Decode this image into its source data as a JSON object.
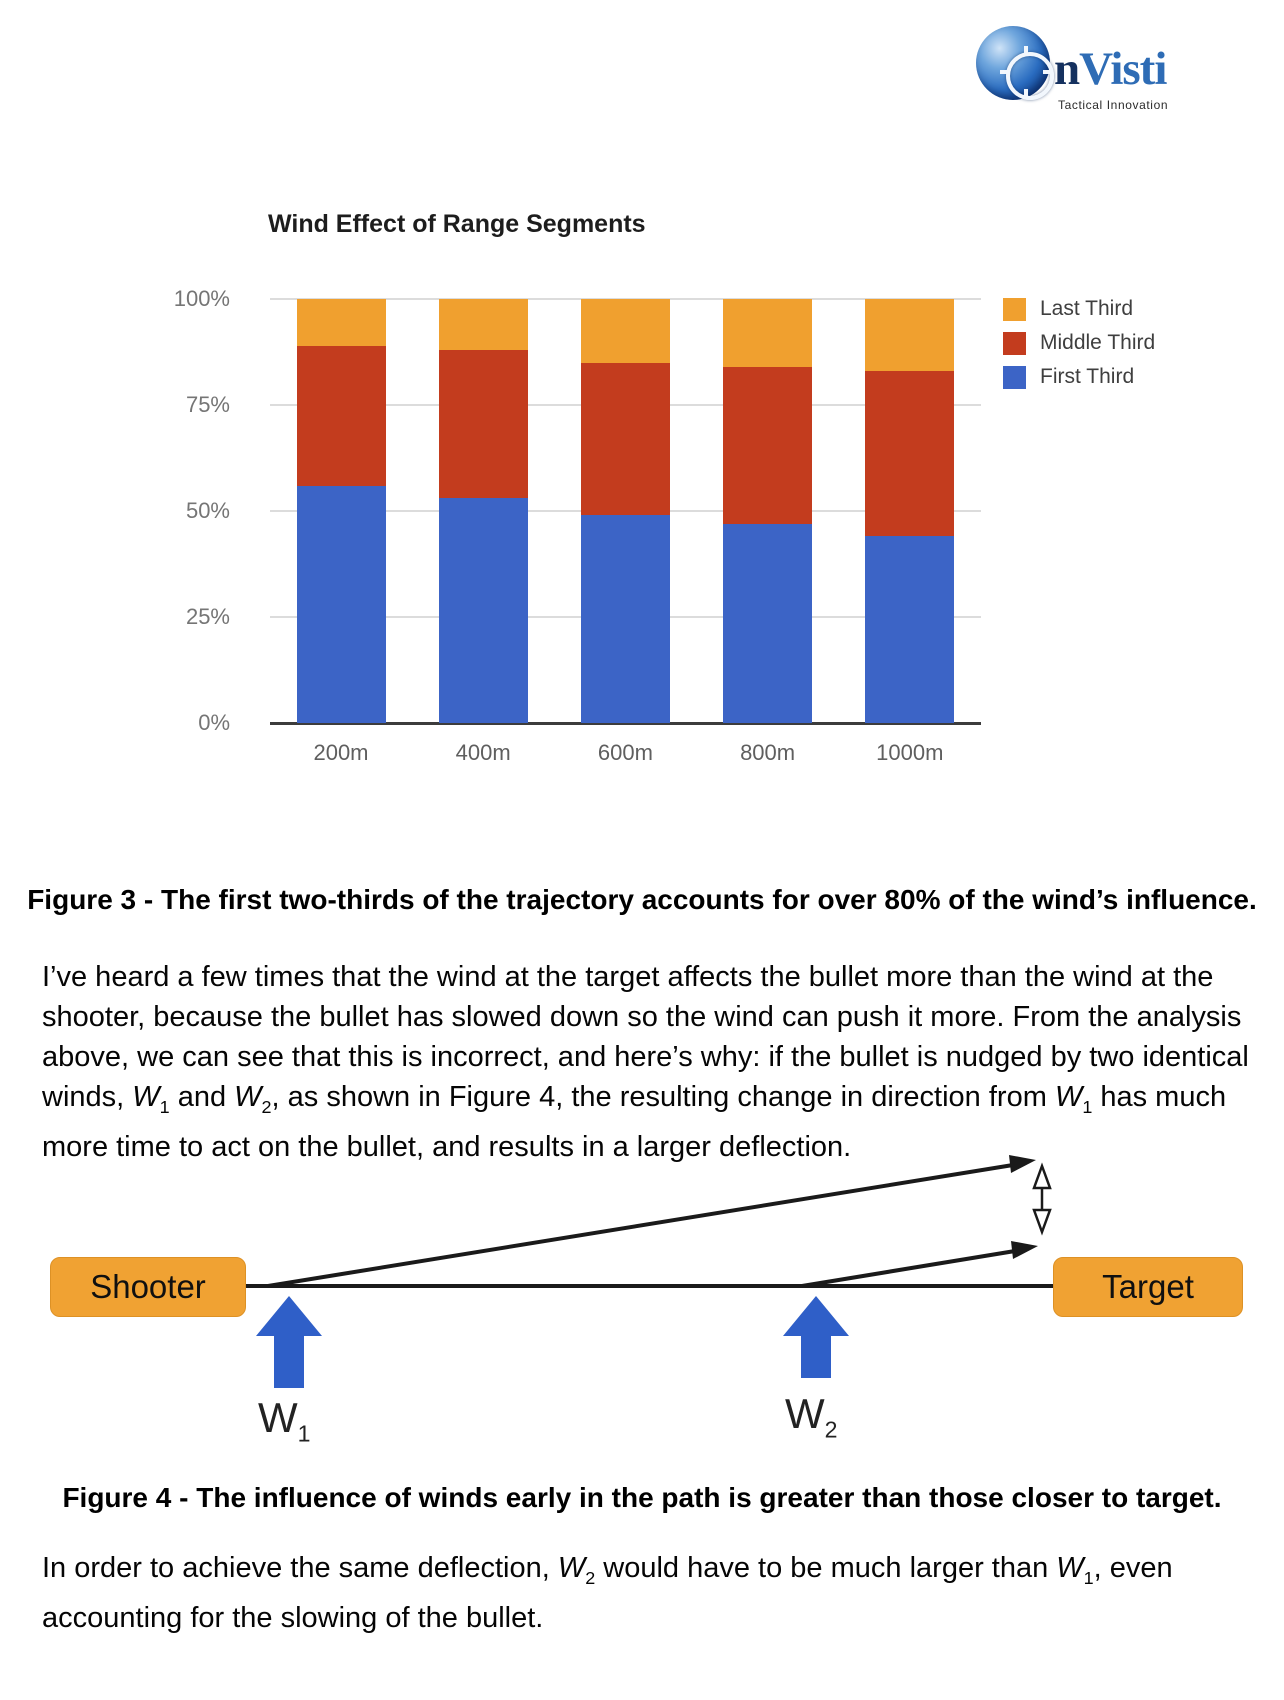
{
  "logo": {
    "brand_first_letter": "n",
    "brand_rest": "Visti",
    "tagline": "Tactical Innovation"
  },
  "chart": {
    "title": "Wind Effect of Range Segments",
    "y_ticks": [
      "100%",
      "75%",
      "50%",
      "25%",
      "0%"
    ],
    "legend_order": [
      "Last Third",
      "Middle Third",
      "First Third"
    ]
  },
  "chart_data": {
    "type": "bar",
    "stacked": true,
    "title": "Wind Effect of Range Segments",
    "categories": [
      "200m",
      "400m",
      "600m",
      "800m",
      "1000m"
    ],
    "series": [
      {
        "name": "First Third",
        "color": "#3c64c6",
        "values": [
          56,
          53,
          49,
          47,
          44
        ]
      },
      {
        "name": "Middle Third",
        "color": "#c33c1e",
        "values": [
          33,
          35,
          36,
          37,
          39
        ]
      },
      {
        "name": "Last Third",
        "color": "#f0a02f",
        "values": [
          11,
          12,
          15,
          16,
          17
        ]
      }
    ],
    "xlabel": "",
    "ylabel": "",
    "ylim": [
      0,
      100
    ],
    "y_tick_format": "percent",
    "grid": true,
    "legend_position": "right"
  },
  "figure3_caption": "Figure 3 - The first two-thirds of the trajectory accounts for over 80% of the wind’s influence.",
  "paragraph1": "I’ve heard a few times that the wind at the target affects the bullet more than the wind at the shooter, because the bullet has slowed down so the wind can push it more. From the analysis above, we can see that this is incorrect, and here’s why: if the bullet is nudged by two identical winds, W_1 and W_2, as shown in Figure 4, the resulting change in direction from W_1 has much more time to act on the bullet, and results in a larger deflection.",
  "diagram": {
    "shooter_label": "Shooter",
    "target_label": "Target",
    "w1_label": "W_1",
    "w2_label": "W_2",
    "box_color": "#f0a233",
    "wind_arrow_color": "#2f5fc8",
    "path_color": "#1a1a1a"
  },
  "figure4_caption": "Figure 4 - The influence of winds early in the path is greater than those closer to target.",
  "paragraph2": "In order to achieve the same deflection, W_2 would have to be much larger than W_1, even accounting for the slowing of the bullet."
}
